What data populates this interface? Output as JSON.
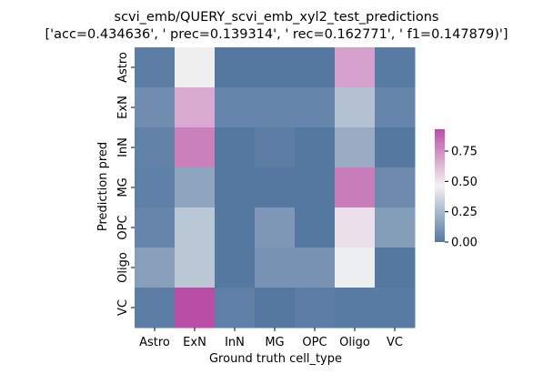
{
  "chart_data": {
    "type": "heatmap",
    "title": "scvi_emb/QUERY_scvi_emb_xyl2_test_predictions",
    "subtitle": "['acc=0.434636', ' prec=0.139314', ' rec=0.162771', ' f1=0.147879)']",
    "xlabel": "Ground truth cell_type",
    "ylabel": "Prediction pred",
    "x_categories": [
      "Astro",
      "ExN",
      "InN",
      "MG",
      "OPC",
      "Oligo",
      "VC"
    ],
    "y_categories": [
      "Astro",
      "ExN",
      "InN",
      "MG",
      "OPC",
      "Oligo",
      "VC"
    ],
    "values": [
      [
        0.02,
        0.47,
        0.0,
        0.0,
        0.0,
        0.7,
        0.01
      ],
      [
        0.08,
        0.67,
        0.05,
        0.05,
        0.05,
        0.28,
        0.05
      ],
      [
        0.04,
        0.79,
        0.0,
        0.02,
        0.0,
        0.2,
        0.0
      ],
      [
        0.03,
        0.17,
        0.0,
        0.0,
        0.0,
        0.8,
        0.07
      ],
      [
        0.05,
        0.3,
        0.0,
        0.12,
        0.0,
        0.52,
        0.14
      ],
      [
        0.15,
        0.3,
        0.0,
        0.1,
        0.1,
        0.45,
        0.0
      ],
      [
        0.02,
        0.93,
        0.03,
        0.0,
        0.02,
        0.01,
        0.01
      ]
    ],
    "colorbar": {
      "ticks": [
        0.0,
        0.25,
        0.5,
        0.75
      ],
      "tick_labels": [
        "0.00",
        "0.25",
        "0.50",
        "0.75"
      ],
      "vmin": 0.0,
      "vmax": 0.93
    },
    "colormap": {
      "low": "#5578a1",
      "mid": "#f2f2f2",
      "high": "#b84fa4"
    },
    "grid": false
  }
}
